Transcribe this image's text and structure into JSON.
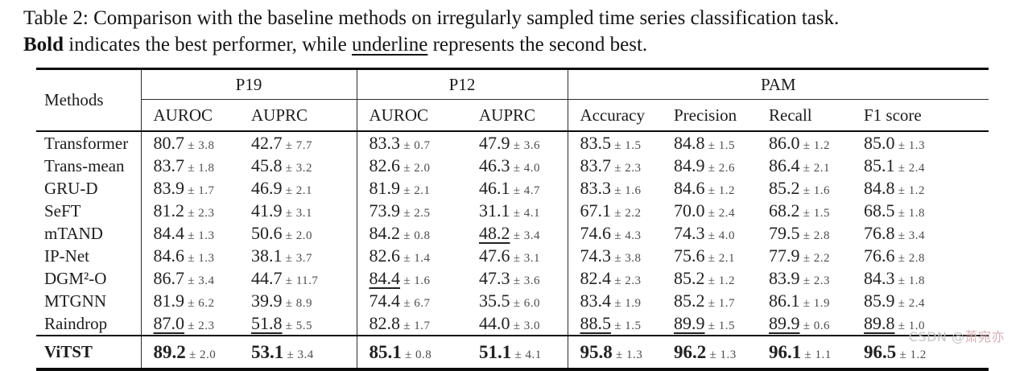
{
  "caption": {
    "line1": "Table 2: Comparison with the baseline methods on irregularly sampled time series classification task.",
    "bold_word": "Bold",
    "line2_mid": " indicates the best performer, while ",
    "underline_word": "underline",
    "line2_end": " represents the second best."
  },
  "table": {
    "methods_header": "Methods",
    "groups": [
      {
        "label": "P19"
      },
      {
        "label": "P12"
      },
      {
        "label": "PAM"
      }
    ],
    "columns": [
      "AUROC",
      "AUPRC",
      "AUROC",
      "AUPRC",
      "Accuracy",
      "Precision",
      "Recall",
      "F1 score"
    ],
    "rows": [
      {
        "method": "Transformer",
        "cells": [
          {
            "v": "80.7",
            "s": "3.8"
          },
          {
            "v": "42.7",
            "s": "7.7"
          },
          {
            "v": "83.3",
            "s": "0.7"
          },
          {
            "v": "47.9",
            "s": "3.6"
          },
          {
            "v": "83.5",
            "s": "1.5"
          },
          {
            "v": "84.8",
            "s": "1.5"
          },
          {
            "v": "86.0",
            "s": "1.2"
          },
          {
            "v": "85.0",
            "s": "1.3"
          }
        ]
      },
      {
        "method": "Trans-mean",
        "cells": [
          {
            "v": "83.7",
            "s": "1.8"
          },
          {
            "v": "45.8",
            "s": "3.2"
          },
          {
            "v": "82.6",
            "s": "2.0"
          },
          {
            "v": "46.3",
            "s": "4.0"
          },
          {
            "v": "83.7",
            "s": "2.3"
          },
          {
            "v": "84.9",
            "s": "2.6"
          },
          {
            "v": "86.4",
            "s": "2.1"
          },
          {
            "v": "85.1",
            "s": "2.4"
          }
        ]
      },
      {
        "method": "GRU-D",
        "cells": [
          {
            "v": "83.9",
            "s": "1.7"
          },
          {
            "v": "46.9",
            "s": "2.1"
          },
          {
            "v": "81.9",
            "s": "2.1"
          },
          {
            "v": "46.1",
            "s": "4.7"
          },
          {
            "v": "83.3",
            "s": "1.6"
          },
          {
            "v": "84.6",
            "s": "1.2"
          },
          {
            "v": "85.2",
            "s": "1.6"
          },
          {
            "v": "84.8",
            "s": "1.2"
          }
        ]
      },
      {
        "method": "SeFT",
        "cells": [
          {
            "v": "81.2",
            "s": "2.3"
          },
          {
            "v": "41.9",
            "s": "3.1"
          },
          {
            "v": "73.9",
            "s": "2.5"
          },
          {
            "v": "31.1",
            "s": "4.1"
          },
          {
            "v": "67.1",
            "s": "2.2"
          },
          {
            "v": "70.0",
            "s": "2.4"
          },
          {
            "v": "68.2",
            "s": "1.5"
          },
          {
            "v": "68.5",
            "s": "1.8"
          }
        ]
      },
      {
        "method": "mTAND",
        "cells": [
          {
            "v": "84.4",
            "s": "1.3"
          },
          {
            "v": "50.6",
            "s": "2.0"
          },
          {
            "v": "84.2",
            "s": "0.8"
          },
          {
            "v": "48.2",
            "s": "3.4",
            "u": true
          },
          {
            "v": "74.6",
            "s": "4.3"
          },
          {
            "v": "74.3",
            "s": "4.0"
          },
          {
            "v": "79.5",
            "s": "2.8"
          },
          {
            "v": "76.8",
            "s": "3.4"
          }
        ]
      },
      {
        "method": "IP-Net",
        "cells": [
          {
            "v": "84.6",
            "s": "1.3"
          },
          {
            "v": "38.1",
            "s": "3.7"
          },
          {
            "v": "82.6",
            "s": "1.4"
          },
          {
            "v": "47.6",
            "s": "3.1"
          },
          {
            "v": "74.3",
            "s": "3.8"
          },
          {
            "v": "75.6",
            "s": "2.1"
          },
          {
            "v": "77.9",
            "s": "2.2"
          },
          {
            "v": "76.6",
            "s": "2.8"
          }
        ]
      },
      {
        "method": "DGM²-O",
        "cells": [
          {
            "v": "86.7",
            "s": "3.4"
          },
          {
            "v": "44.7",
            "s": "11.7"
          },
          {
            "v": "84.4",
            "s": "1.6",
            "u": true
          },
          {
            "v": "47.3",
            "s": "3.6"
          },
          {
            "v": "82.4",
            "s": "2.3"
          },
          {
            "v": "85.2",
            "s": "1.2"
          },
          {
            "v": "83.9",
            "s": "2.3"
          },
          {
            "v": "84.3",
            "s": "1.8"
          }
        ]
      },
      {
        "method": "MTGNN",
        "cells": [
          {
            "v": "81.9",
            "s": "6.2"
          },
          {
            "v": "39.9",
            "s": "8.9"
          },
          {
            "v": "74.4",
            "s": "6.7"
          },
          {
            "v": "35.5",
            "s": "6.0"
          },
          {
            "v": "83.4",
            "s": "1.9"
          },
          {
            "v": "85.2",
            "s": "1.7"
          },
          {
            "v": "86.1",
            "s": "1.9"
          },
          {
            "v": "85.9",
            "s": "2.4"
          }
        ]
      },
      {
        "method": "Raindrop",
        "cells": [
          {
            "v": "87.0",
            "s": "2.3",
            "u": true
          },
          {
            "v": "51.8",
            "s": "5.5",
            "u": true
          },
          {
            "v": "82.8",
            "s": "1.7"
          },
          {
            "v": "44.0",
            "s": "3.0"
          },
          {
            "v": "88.5",
            "s": "1.5",
            "u": true
          },
          {
            "v": "89.9",
            "s": "1.5",
            "u": true
          },
          {
            "v": "89.9",
            "s": "0.6",
            "u": true
          },
          {
            "v": "89.8",
            "s": "1.0",
            "u": true
          }
        ]
      }
    ],
    "final_row": {
      "method": "ViTST",
      "cells": [
        {
          "v": "89.2",
          "s": "2.0",
          "b": true
        },
        {
          "v": "53.1",
          "s": "3.4",
          "b": true
        },
        {
          "v": "85.1",
          "s": "0.8",
          "b": true
        },
        {
          "v": "51.1",
          "s": "4.1",
          "b": true
        },
        {
          "v": "95.8",
          "s": "1.3",
          "b": true
        },
        {
          "v": "96.2",
          "s": "1.3",
          "b": true
        },
        {
          "v": "96.1",
          "s": "1.1",
          "b": true
        },
        {
          "v": "96.5",
          "s": "1.2",
          "b": true
        }
      ]
    }
  },
  "watermark": {
    "prefix": "CSDN @",
    "name": "萧宛亦"
  }
}
